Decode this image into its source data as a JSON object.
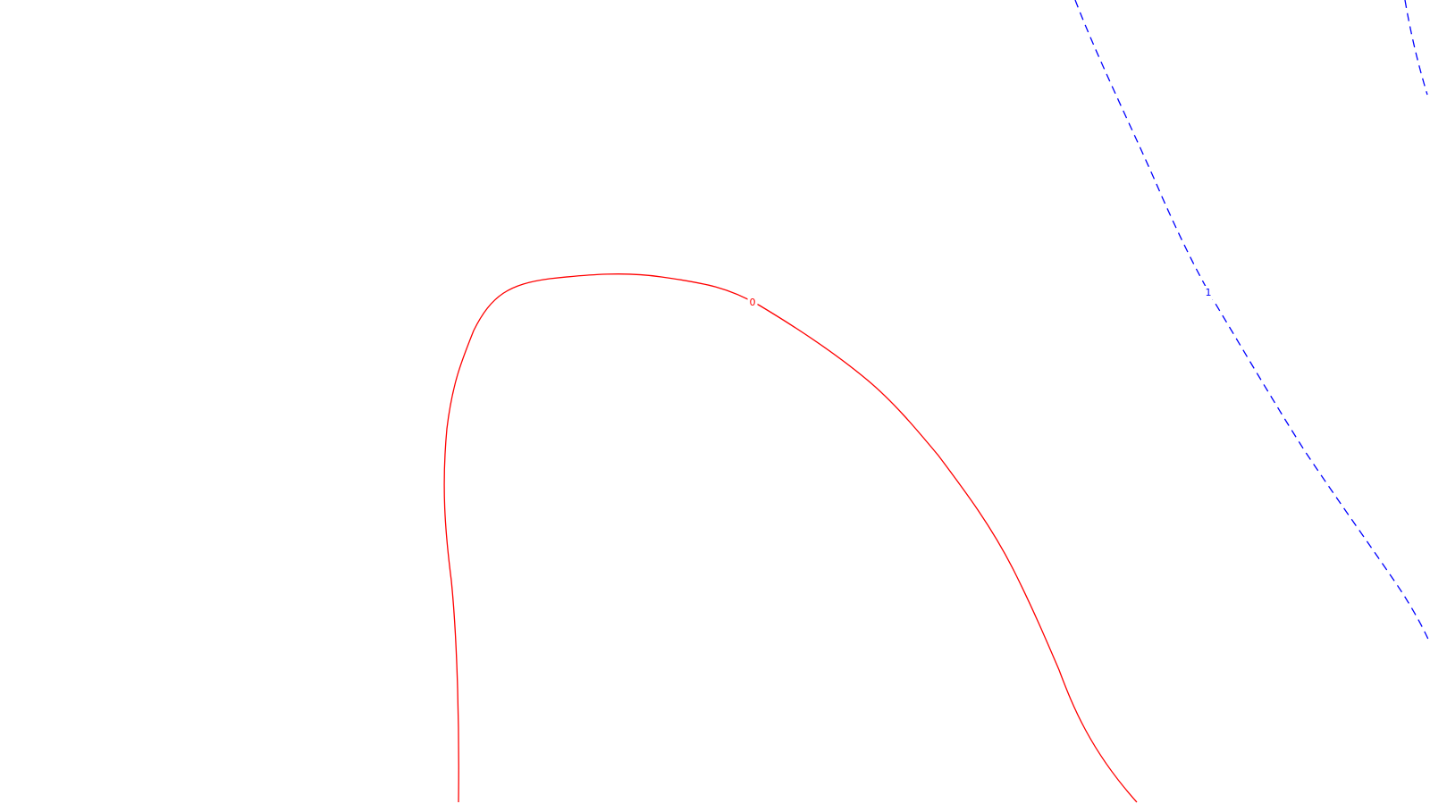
{
  "chart_data": {
    "type": "contour",
    "title": "",
    "xlabel": "",
    "ylabel": "",
    "grid": false,
    "legend": "none",
    "levels": [
      {
        "name": "contour-level-0",
        "label": "0",
        "color": "#ff0000",
        "dash": "solid"
      },
      {
        "name": "contour-level-1",
        "label": "1",
        "color": "#0000ff",
        "dash": "dashed"
      }
    ]
  }
}
